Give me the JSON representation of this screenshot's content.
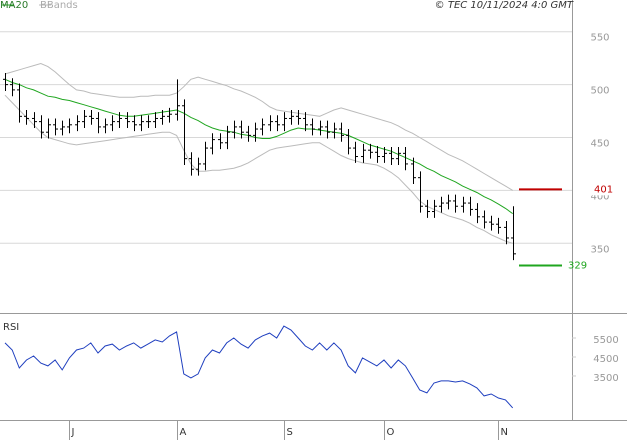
{
  "header": "© TEC 10/11/2024 4:0 GMT",
  "chart_data": [
    {
      "type": "ohlc",
      "categories": [
        null,
        null,
        null,
        null,
        null,
        null,
        null,
        null,
        null,
        "J",
        null,
        null,
        null,
        null,
        null,
        null,
        null,
        null,
        null,
        null,
        null,
        null,
        null,
        null,
        "A",
        null,
        null,
        null,
        null,
        null,
        null,
        null,
        null,
        null,
        null,
        null,
        null,
        null,
        null,
        "S",
        null,
        null,
        null,
        null,
        null,
        null,
        null,
        null,
        null,
        null,
        null,
        null,
        null,
        "O",
        null,
        null,
        null,
        null,
        null,
        null,
        null,
        null,
        null,
        null,
        null,
        null,
        null,
        null,
        null,
        "N",
        null,
        null
      ],
      "open": [
        505,
        500,
        495,
        470,
        468,
        465,
        455,
        462,
        458,
        460,
        462,
        465,
        470,
        468,
        460,
        462,
        465,
        468,
        465,
        462,
        465,
        465,
        468,
        470,
        472,
        480,
        430,
        420,
        425,
        440,
        448,
        445,
        455,
        460,
        455,
        452,
        458,
        462,
        465,
        462,
        468,
        470,
        468,
        462,
        458,
        460,
        455,
        458,
        452,
        440,
        432,
        438,
        436,
        432,
        435,
        430,
        435,
        425,
        412,
        385,
        380,
        385,
        388,
        390,
        385,
        388,
        382,
        375,
        370,
        368,
        365,
        355
      ],
      "high": [
        511,
        506,
        501,
        476,
        474,
        471,
        468,
        468,
        466,
        468,
        471,
        476,
        476,
        474,
        468,
        471,
        474,
        474,
        471,
        471,
        471,
        474,
        476,
        478,
        505,
        486,
        436,
        431,
        446,
        454,
        454,
        461,
        466,
        466,
        461,
        464,
        468,
        471,
        471,
        474,
        476,
        476,
        474,
        468,
        466,
        466,
        464,
        464,
        458,
        446,
        444,
        444,
        442,
        441,
        441,
        441,
        441,
        431,
        418,
        391,
        391,
        394,
        396,
        396,
        394,
        394,
        388,
        381,
        376,
        374,
        371,
        385
      ],
      "low": [
        494,
        489,
        464,
        462,
        459,
        449,
        449,
        452,
        452,
        454,
        456,
        459,
        462,
        454,
        454,
        456,
        459,
        459,
        456,
        456,
        459,
        459,
        462,
        464,
        466,
        424,
        414,
        414,
        419,
        434,
        439,
        439,
        449,
        449,
        446,
        446,
        452,
        456,
        456,
        456,
        462,
        462,
        456,
        452,
        452,
        449,
        449,
        446,
        434,
        426,
        426,
        430,
        426,
        426,
        424,
        424,
        419,
        406,
        379,
        374,
        374,
        379,
        382,
        379,
        379,
        376,
        369,
        364,
        362,
        359,
        349,
        334
      ],
      "close": [
        500,
        495,
        470,
        468,
        465,
        455,
        462,
        458,
        460,
        462,
        465,
        470,
        468,
        460,
        462,
        465,
        468,
        465,
        462,
        465,
        465,
        468,
        470,
        472,
        480,
        430,
        420,
        425,
        440,
        448,
        445,
        455,
        460,
        455,
        452,
        458,
        462,
        465,
        462,
        468,
        470,
        468,
        462,
        458,
        460,
        455,
        458,
        452,
        440,
        432,
        438,
        436,
        432,
        435,
        430,
        435,
        425,
        412,
        385,
        380,
        385,
        388,
        390,
        385,
        388,
        382,
        375,
        370,
        368,
        365,
        355,
        340
      ],
      "color": "#000000",
      "series": [
        {
          "name": "MA20",
          "color": "#1fa61f",
          "values": [
            505,
            502,
            500,
            497,
            495,
            492,
            489,
            488,
            486,
            485,
            483,
            481,
            479,
            477,
            475,
            473,
            471,
            470,
            470,
            471,
            472,
            473,
            474,
            475,
            476,
            473,
            469,
            466,
            462,
            459,
            457,
            456,
            455,
            453,
            452,
            450,
            449,
            449,
            451,
            454,
            457,
            459,
            458,
            458,
            457,
            456,
            455,
            454,
            452,
            449,
            446,
            443,
            441,
            439,
            437,
            434,
            431,
            428,
            425,
            421,
            418,
            414,
            411,
            408,
            404,
            401,
            398,
            394,
            391,
            387,
            383,
            378
          ]
        },
        {
          "name": "BBands",
          "color": "#bbbbbb",
          "upper": [
            510,
            512,
            514,
            516,
            518,
            520,
            517,
            512,
            506,
            500,
            495,
            494,
            492,
            491,
            490,
            489,
            488,
            488,
            488,
            489,
            489,
            490,
            490,
            490,
            492,
            498,
            505,
            507,
            505,
            503,
            501,
            499,
            496,
            494,
            491,
            488,
            484,
            479,
            476,
            475,
            474,
            473,
            472,
            471,
            470,
            473,
            476,
            478,
            476,
            474,
            472,
            470,
            468,
            466,
            464,
            461,
            457,
            454,
            450,
            446,
            442,
            438,
            434,
            431,
            428,
            424,
            420,
            416,
            412,
            408,
            404,
            400
          ],
          "lower": [
            490,
            483,
            476,
            469,
            462,
            455,
            450,
            448,
            446,
            444,
            443,
            444,
            445,
            446,
            447,
            448,
            449,
            450,
            451,
            452,
            453,
            454,
            455,
            455,
            452,
            438,
            425,
            418,
            418,
            419,
            419,
            420,
            421,
            423,
            426,
            430,
            434,
            438,
            440,
            441,
            442,
            443,
            444,
            445,
            445,
            441,
            437,
            433,
            430,
            428,
            426,
            425,
            424,
            421,
            417,
            412,
            405,
            398,
            390,
            385,
            382,
            379,
            376,
            374,
            372,
            369,
            365,
            362,
            358,
            355,
            352,
            350
          ]
        }
      ],
      "annotations": [
        {
          "text": "401",
          "value": 401,
          "color": "#c00000"
        },
        {
          "text": "329",
          "value": 329,
          "color": "#1fa61f"
        }
      ],
      "ylim": [
        285,
        580
      ],
      "yticks": [
        350,
        400,
        450,
        500,
        550
      ],
      "grid": true
    },
    {
      "type": "line",
      "title": "RSI",
      "color": "#1f3fbf",
      "values": [
        5240,
        4870,
        3920,
        4340,
        4550,
        4180,
        4030,
        4340,
        3820,
        4450,
        4870,
        4970,
        5240,
        4710,
        5080,
        5180,
        4870,
        5080,
        5240,
        4970,
        5180,
        5400,
        5290,
        5610,
        5820,
        3610,
        3400,
        3610,
        4450,
        4870,
        4710,
        5240,
        5500,
        5180,
        4970,
        5400,
        5610,
        5760,
        5500,
        6130,
        5920,
        5500,
        5080,
        4870,
        5240,
        4870,
        5240,
        4870,
        4030,
        3660,
        4450,
        4240,
        4030,
        4340,
        3920,
        4340,
        4030,
        3400,
        2760,
        2610,
        3130,
        3240,
        3240,
        3180,
        3240,
        3080,
        2870,
        2450,
        2550,
        2340,
        2240,
        1820
      ],
      "ylim": [
        1180,
        6660
      ],
      "yticks": [
        5500,
        4500,
        3500
      ]
    }
  ]
}
